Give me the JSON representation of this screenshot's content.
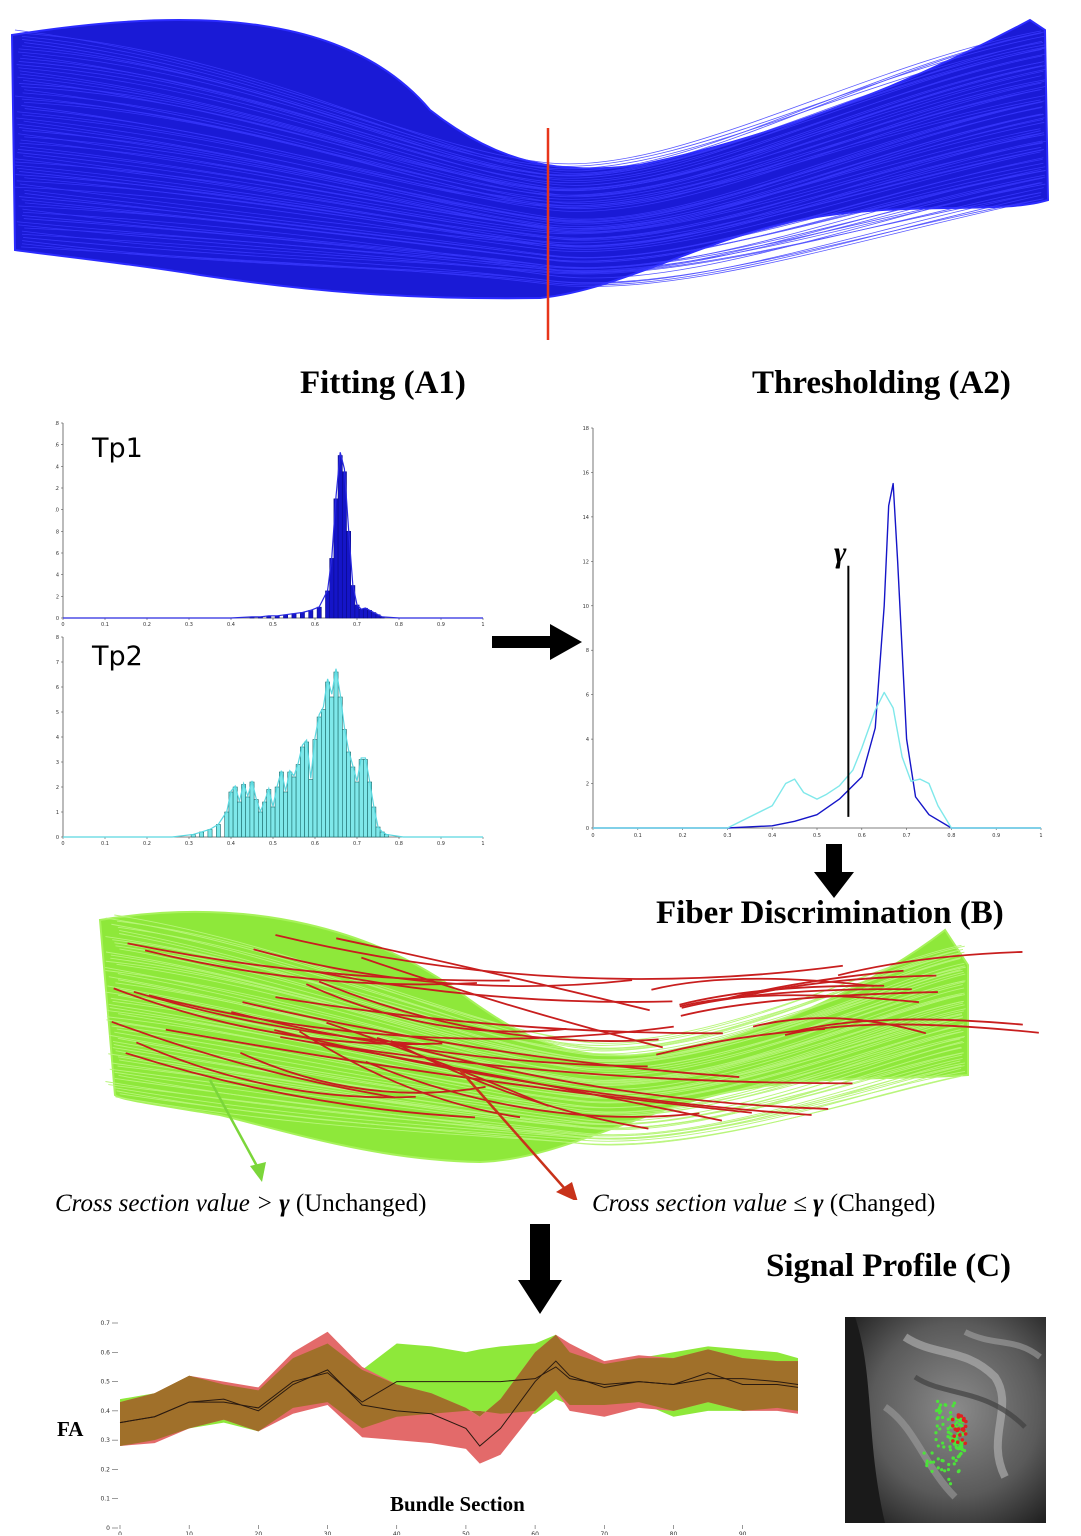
{
  "headings": {
    "fitting": "Fitting (A1)",
    "thresholding": "Thresholding (A2)",
    "fiber_discrimination": "Fiber Discrimination (B)",
    "signal_profile": "Signal Profile (C)"
  },
  "panels": {
    "tp1": "Tp1",
    "tp2": "Tp2",
    "gamma": "γ"
  },
  "captions": {
    "unchanged": {
      "prefix": "Cross section value >",
      "gamma": "γ",
      "suffix": "(Unchanged)"
    },
    "changed": {
      "prefix": "Cross section value ≤",
      "gamma": "γ",
      "suffix": "(Changed)"
    }
  },
  "profile": {
    "ylabel": "FA",
    "xlabel": "Bundle Section"
  },
  "colors": {
    "bundle_blue": "#1a1ad6",
    "fiber_green": "#8ee83a",
    "fiber_red": "#c81e1e",
    "arrow_red": "#e8361a",
    "tp1_blue": "#1515c8",
    "tp2_cyan": "#7fe8ea",
    "profile_green": "#8ee83a",
    "profile_red": "#e36a6a",
    "profile_overlap": "#a0702a"
  },
  "chart_data": [
    {
      "type": "bar",
      "panel": "Tp1",
      "x_ticks": [
        0,
        0.1,
        0.2,
        0.3,
        0.4,
        0.5,
        0.6,
        0.7,
        0.8,
        0.9,
        1
      ],
      "y_ticks": [
        0,
        2,
        4,
        6,
        8,
        10,
        12,
        14,
        16,
        18
      ],
      "xlim": [
        0,
        1
      ],
      "ylim": [
        0,
        18
      ],
      "bins": [
        0.45,
        0.47,
        0.49,
        0.51,
        0.53,
        0.55,
        0.57,
        0.59,
        0.61,
        0.63,
        0.64,
        0.65,
        0.66,
        0.67,
        0.68,
        0.69,
        0.7,
        0.71,
        0.72,
        0.73,
        0.74,
        0.75,
        0.76
      ],
      "values": [
        0.1,
        0.1,
        0.2,
        0.2,
        0.3,
        0.4,
        0.5,
        0.7,
        1.0,
        2.5,
        5.5,
        11.0,
        15.0,
        13.5,
        8.0,
        3.0,
        1.2,
        0.8,
        0.9,
        0.7,
        0.5,
        0.3,
        0.1
      ]
    },
    {
      "type": "bar",
      "panel": "Tp2",
      "x_ticks": [
        0,
        0.1,
        0.2,
        0.3,
        0.4,
        0.5,
        0.6,
        0.7,
        0.8,
        0.9,
        1
      ],
      "y_ticks": [
        0,
        1,
        2,
        3,
        4,
        5,
        6,
        7,
        8
      ],
      "xlim": [
        0,
        1
      ],
      "ylim": [
        0,
        8
      ],
      "bins": [
        0.31,
        0.33,
        0.35,
        0.37,
        0.39,
        0.4,
        0.41,
        0.42,
        0.43,
        0.44,
        0.45,
        0.46,
        0.47,
        0.48,
        0.49,
        0.5,
        0.51,
        0.52,
        0.53,
        0.54,
        0.55,
        0.56,
        0.57,
        0.58,
        0.59,
        0.6,
        0.61,
        0.62,
        0.63,
        0.64,
        0.65,
        0.66,
        0.67,
        0.68,
        0.69,
        0.7,
        0.71,
        0.72,
        0.73,
        0.74,
        0.75,
        0.76,
        0.77
      ],
      "values": [
        0.1,
        0.2,
        0.3,
        0.5,
        1.0,
        1.8,
        2.0,
        1.4,
        2.1,
        1.6,
        2.2,
        1.5,
        1.0,
        1.4,
        1.9,
        1.2,
        2.0,
        2.6,
        1.8,
        2.6,
        2.4,
        2.9,
        3.6,
        3.8,
        2.3,
        3.9,
        4.8,
        5.1,
        6.2,
        5.6,
        6.6,
        5.6,
        4.3,
        3.4,
        2.8,
        2.2,
        3.1,
        3.1,
        2.2,
        1.2,
        0.4,
        0.2,
        0.1
      ]
    },
    {
      "type": "line",
      "panel": "Thresholding (A2)",
      "x_ticks": [
        0,
        0.1,
        0.2,
        0.3,
        0.4,
        0.5,
        0.6,
        0.7,
        0.8,
        0.9,
        1
      ],
      "y_ticks": [
        0,
        2,
        4,
        6,
        8,
        10,
        12,
        14,
        16,
        18
      ],
      "xlim": [
        0,
        1
      ],
      "ylim": [
        0,
        18
      ],
      "threshold_gamma": 0.57,
      "series": [
        {
          "color": "#1515c8",
          "x": [
            0.3,
            0.4,
            0.45,
            0.5,
            0.55,
            0.6,
            0.63,
            0.65,
            0.66,
            0.67,
            0.68,
            0.7,
            0.72,
            0.75,
            0.8
          ],
          "y": [
            0,
            0.1,
            0.3,
            0.6,
            1.3,
            2.3,
            4.5,
            10.0,
            14.5,
            15.5,
            12.0,
            4.0,
            1.4,
            0.6,
            0
          ]
        },
        {
          "color": "#7fe8ea",
          "x": [
            0.3,
            0.4,
            0.43,
            0.45,
            0.47,
            0.5,
            0.52,
            0.55,
            0.58,
            0.6,
            0.63,
            0.65,
            0.67,
            0.69,
            0.71,
            0.73,
            0.75,
            0.77,
            0.8
          ],
          "y": [
            0,
            1.0,
            2.0,
            2.2,
            1.6,
            1.3,
            1.5,
            1.9,
            2.6,
            3.6,
            5.3,
            6.1,
            5.4,
            3.2,
            2.1,
            2.2,
            2.0,
            1.0,
            0
          ]
        }
      ]
    },
    {
      "type": "area",
      "panel": "Signal Profile (C)",
      "xlabel": "Bundle Section",
      "ylabel": "FA",
      "x_ticks": [
        0,
        10,
        20,
        30,
        40,
        50,
        60,
        70,
        80,
        90
      ],
      "y_ticks": [
        0,
        0.1,
        0.2,
        0.3,
        0.4,
        0.5,
        0.6,
        0.7
      ],
      "xlim": [
        0,
        98
      ],
      "ylim": [
        0,
        0.7
      ],
      "x": [
        0,
        5,
        10,
        15,
        20,
        25,
        30,
        35,
        40,
        45,
        50,
        52,
        55,
        60,
        63,
        65,
        70,
        75,
        80,
        85,
        90,
        95,
        98
      ],
      "series": [
        {
          "color": "#8ee83a",
          "mean": [
            0.36,
            0.38,
            0.43,
            0.43,
            0.41,
            0.5,
            0.53,
            0.43,
            0.5,
            0.5,
            0.5,
            0.5,
            0.5,
            0.51,
            0.55,
            0.51,
            0.49,
            0.5,
            0.49,
            0.51,
            0.51,
            0.5,
            0.49
          ],
          "upper": [
            0.44,
            0.46,
            0.52,
            0.49,
            0.47,
            0.58,
            0.63,
            0.54,
            0.63,
            0.62,
            0.6,
            0.61,
            0.62,
            0.63,
            0.66,
            0.6,
            0.56,
            0.58,
            0.6,
            0.62,
            0.61,
            0.6,
            0.58
          ],
          "lower": [
            0.28,
            0.3,
            0.34,
            0.36,
            0.33,
            0.41,
            0.43,
            0.34,
            0.38,
            0.39,
            0.4,
            0.4,
            0.39,
            0.39,
            0.44,
            0.42,
            0.42,
            0.43,
            0.38,
            0.4,
            0.4,
            0.41,
            0.4
          ]
        },
        {
          "color": "#e36a6a",
          "mean": [
            0.36,
            0.38,
            0.43,
            0.44,
            0.4,
            0.49,
            0.54,
            0.42,
            0.4,
            0.39,
            0.34,
            0.28,
            0.34,
            0.5,
            0.57,
            0.52,
            0.48,
            0.5,
            0.49,
            0.53,
            0.49,
            0.49,
            0.48
          ],
          "upper": [
            0.43,
            0.46,
            0.52,
            0.5,
            0.48,
            0.6,
            0.67,
            0.55,
            0.49,
            0.46,
            0.41,
            0.38,
            0.44,
            0.6,
            0.66,
            0.63,
            0.57,
            0.59,
            0.58,
            0.61,
            0.58,
            0.57,
            0.57
          ],
          "lower": [
            0.28,
            0.29,
            0.34,
            0.37,
            0.33,
            0.39,
            0.42,
            0.31,
            0.3,
            0.29,
            0.27,
            0.22,
            0.25,
            0.4,
            0.47,
            0.4,
            0.38,
            0.41,
            0.4,
            0.43,
            0.4,
            0.4,
            0.39
          ]
        }
      ]
    }
  ]
}
